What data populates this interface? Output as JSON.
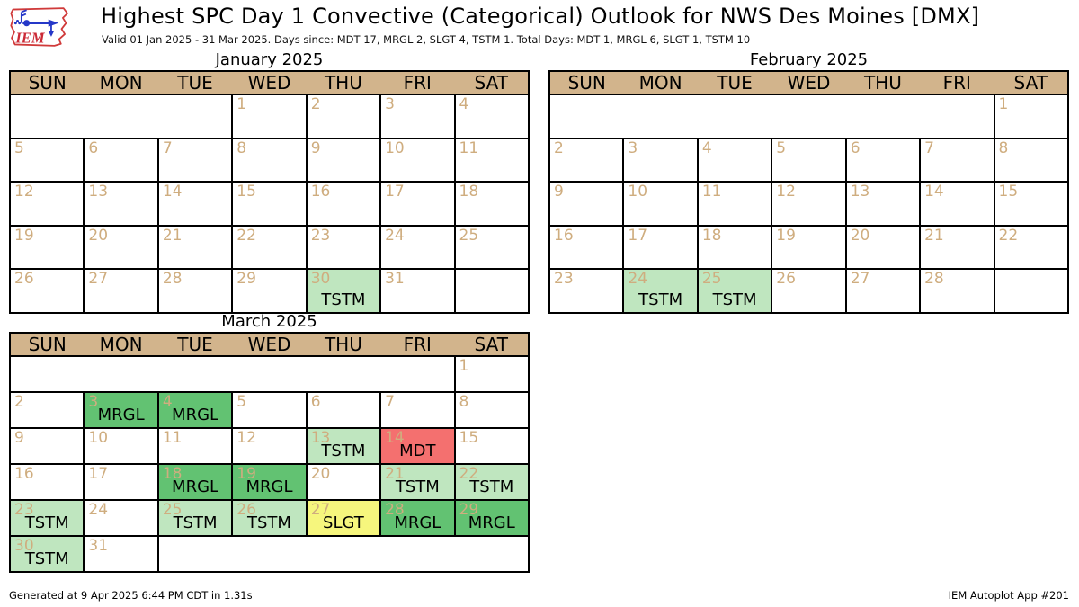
{
  "header": {
    "title": "Highest SPC Day 1 Convective (Categorical) Outlook for NWS Des Moines [DMX]",
    "subtitle": "Valid 01 Jan 2025 - 31 Mar 2025. Days since: MDT 17, MRGL 2, SLGT 4, TSTM 1. Total Days: MDT 1, MRGL 6, SLGT 1, TSTM 10",
    "logo_text": "IEM"
  },
  "weekday_headers": [
    "SUN",
    "MON",
    "TUE",
    "WED",
    "THU",
    "FRI",
    "SAT"
  ],
  "colors": {
    "header_bg": "#d2b48c",
    "day_number": "#cfad7f",
    "TSTM": "#bfe6bf",
    "MRGL": "#62c272",
    "SLGT": "#f6f67d",
    "MDT": "#f4706f"
  },
  "calendars": [
    {
      "id": "january",
      "title": "January 2025",
      "weeks": [
        [
          {
            "span": 3
          },
          {
            "day": 1
          },
          {
            "day": 2
          },
          {
            "day": 3
          },
          {
            "day": 4
          }
        ],
        [
          {
            "day": 5
          },
          {
            "day": 6
          },
          {
            "day": 7
          },
          {
            "day": 8
          },
          {
            "day": 9
          },
          {
            "day": 10
          },
          {
            "day": 11
          }
        ],
        [
          {
            "day": 12
          },
          {
            "day": 13
          },
          {
            "day": 14
          },
          {
            "day": 15
          },
          {
            "day": 16
          },
          {
            "day": 17
          },
          {
            "day": 18
          }
        ],
        [
          {
            "day": 19
          },
          {
            "day": 20
          },
          {
            "day": 21
          },
          {
            "day": 22
          },
          {
            "day": 23
          },
          {
            "day": 24
          },
          {
            "day": 25
          }
        ],
        [
          {
            "day": 26
          },
          {
            "day": 27
          },
          {
            "day": 28
          },
          {
            "day": 29
          },
          {
            "day": 30,
            "cat": "TSTM"
          },
          {
            "day": 31
          },
          {
            "span": 1
          }
        ]
      ]
    },
    {
      "id": "february",
      "title": "February 2025",
      "weeks": [
        [
          {
            "span": 6
          },
          {
            "day": 1
          }
        ],
        [
          {
            "day": 2
          },
          {
            "day": 3
          },
          {
            "day": 4
          },
          {
            "day": 5
          },
          {
            "day": 6
          },
          {
            "day": 7
          },
          {
            "day": 8
          }
        ],
        [
          {
            "day": 9
          },
          {
            "day": 10
          },
          {
            "day": 11
          },
          {
            "day": 12
          },
          {
            "day": 13
          },
          {
            "day": 14
          },
          {
            "day": 15
          }
        ],
        [
          {
            "day": 16
          },
          {
            "day": 17
          },
          {
            "day": 18
          },
          {
            "day": 19
          },
          {
            "day": 20
          },
          {
            "day": 21
          },
          {
            "day": 22
          }
        ],
        [
          {
            "day": 23
          },
          {
            "day": 24,
            "cat": "TSTM"
          },
          {
            "day": 25,
            "cat": "TSTM"
          },
          {
            "day": 26
          },
          {
            "day": 27
          },
          {
            "day": 28
          },
          {
            "span": 1
          }
        ]
      ]
    },
    {
      "id": "march",
      "title": "March 2025",
      "weeks": [
        [
          {
            "span": 6
          },
          {
            "day": 1
          }
        ],
        [
          {
            "day": 2
          },
          {
            "day": 3,
            "cat": "MRGL"
          },
          {
            "day": 4,
            "cat": "MRGL"
          },
          {
            "day": 5
          },
          {
            "day": 6
          },
          {
            "day": 7
          },
          {
            "day": 8
          }
        ],
        [
          {
            "day": 9
          },
          {
            "day": 10
          },
          {
            "day": 11
          },
          {
            "day": 12
          },
          {
            "day": 13,
            "cat": "TSTM"
          },
          {
            "day": 14,
            "cat": "MDT"
          },
          {
            "day": 15
          }
        ],
        [
          {
            "day": 16
          },
          {
            "day": 17
          },
          {
            "day": 18,
            "cat": "MRGL"
          },
          {
            "day": 19,
            "cat": "MRGL"
          },
          {
            "day": 20
          },
          {
            "day": 21,
            "cat": "TSTM"
          },
          {
            "day": 22,
            "cat": "TSTM"
          }
        ],
        [
          {
            "day": 23,
            "cat": "TSTM"
          },
          {
            "day": 24
          },
          {
            "day": 25,
            "cat": "TSTM"
          },
          {
            "day": 26,
            "cat": "TSTM"
          },
          {
            "day": 27,
            "cat": "SLGT"
          },
          {
            "day": 28,
            "cat": "MRGL"
          },
          {
            "day": 29,
            "cat": "MRGL"
          }
        ],
        [
          {
            "day": 30,
            "cat": "TSTM"
          },
          {
            "day": 31
          },
          {
            "span": 5
          }
        ]
      ]
    }
  ],
  "footer": {
    "left": "Generated at 9 Apr 2025 6:44 PM CDT in 1.31s",
    "right": "IEM Autoplot App #201"
  },
  "chart_data": {
    "type": "heatmap",
    "subtype": "calendar",
    "title": "Highest SPC Day 1 Convective (Categorical) Outlook for NWS Des Moines [DMX]",
    "subtitle": "Valid 01 Jan 2025 - 31 Mar 2025. Days since: MDT 17, MRGL 2, SLGT 4, TSTM 1. Total Days: MDT 1, MRGL 6, SLGT 1, TSTM 10",
    "months": [
      "January 2025",
      "February 2025",
      "March 2025"
    ],
    "events": [
      {
        "date": "2025-01-30",
        "category": "TSTM"
      },
      {
        "date": "2025-02-24",
        "category": "TSTM"
      },
      {
        "date": "2025-02-25",
        "category": "TSTM"
      },
      {
        "date": "2025-03-03",
        "category": "MRGL"
      },
      {
        "date": "2025-03-04",
        "category": "MRGL"
      },
      {
        "date": "2025-03-13",
        "category": "TSTM"
      },
      {
        "date": "2025-03-14",
        "category": "MDT"
      },
      {
        "date": "2025-03-18",
        "category": "MRGL"
      },
      {
        "date": "2025-03-19",
        "category": "MRGL"
      },
      {
        "date": "2025-03-21",
        "category": "TSTM"
      },
      {
        "date": "2025-03-22",
        "category": "TSTM"
      },
      {
        "date": "2025-03-23",
        "category": "TSTM"
      },
      {
        "date": "2025-03-25",
        "category": "TSTM"
      },
      {
        "date": "2025-03-26",
        "category": "TSTM"
      },
      {
        "date": "2025-03-27",
        "category": "SLGT"
      },
      {
        "date": "2025-03-28",
        "category": "MRGL"
      },
      {
        "date": "2025-03-29",
        "category": "MRGL"
      },
      {
        "date": "2025-03-30",
        "category": "TSTM"
      }
    ],
    "category_colors": {
      "TSTM": "#bfe6bf",
      "MRGL": "#62c272",
      "SLGT": "#f6f67d",
      "MDT": "#f4706f"
    },
    "totals": {
      "MDT": 1,
      "MRGL": 6,
      "SLGT": 1,
      "TSTM": 10
    }
  }
}
